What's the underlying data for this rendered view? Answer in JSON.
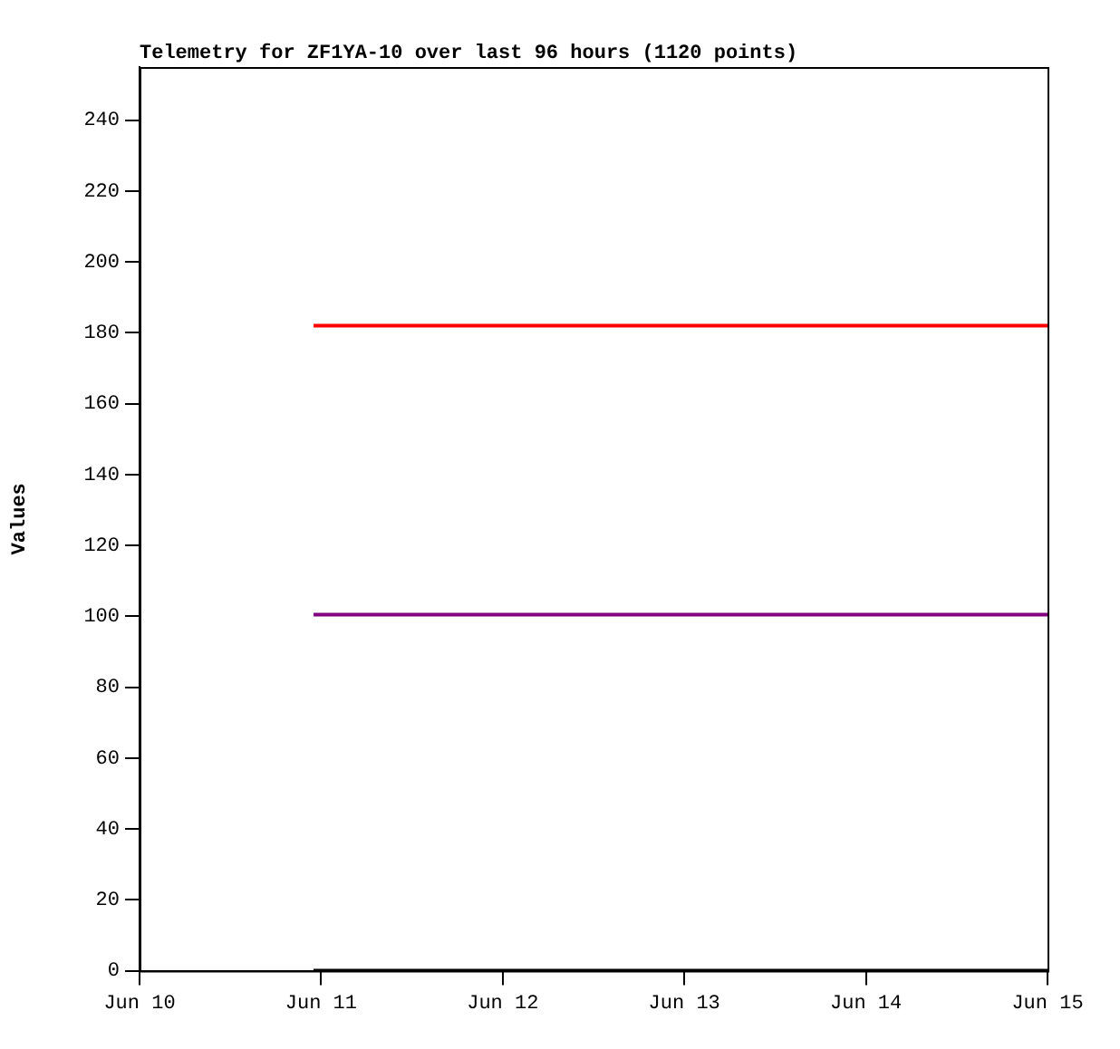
{
  "chart_data": {
    "type": "line",
    "title": "Telemetry for ZF1YA-10 over last 96 hours (1120 points)",
    "ylabel": "Values",
    "x": [
      "--06-10T23:00",
      "--06-15"
    ],
    "series": [
      {
        "color": "#ff0000",
        "values": [
          182,
          182
        ]
      },
      {
        "color": "#800080",
        "values": [
          100.5,
          100.5
        ]
      },
      {
        "color": "#000000",
        "values": [
          0,
          0
        ]
      }
    ],
    "xlim": [
      "--06-10",
      "--06-15"
    ],
    "xticks": [
      {
        "value": "--06-10",
        "label": "Jun 10"
      },
      {
        "value": "--06-11",
        "label": "Jun 11"
      },
      {
        "value": "--06-12",
        "label": "Jun 12"
      },
      {
        "value": "--06-13",
        "label": "Jun 13"
      },
      {
        "value": "--06-14",
        "label": "Jun 14"
      },
      {
        "value": "--06-15",
        "label": "Jun 15"
      }
    ],
    "ylim": [
      0,
      255
    ],
    "yticks": [
      0,
      20,
      40,
      60,
      80,
      100,
      120,
      140,
      160,
      180,
      200,
      220,
      240
    ],
    "grid": false,
    "legend": false,
    "marker": "none",
    "line_style": "solid"
  }
}
